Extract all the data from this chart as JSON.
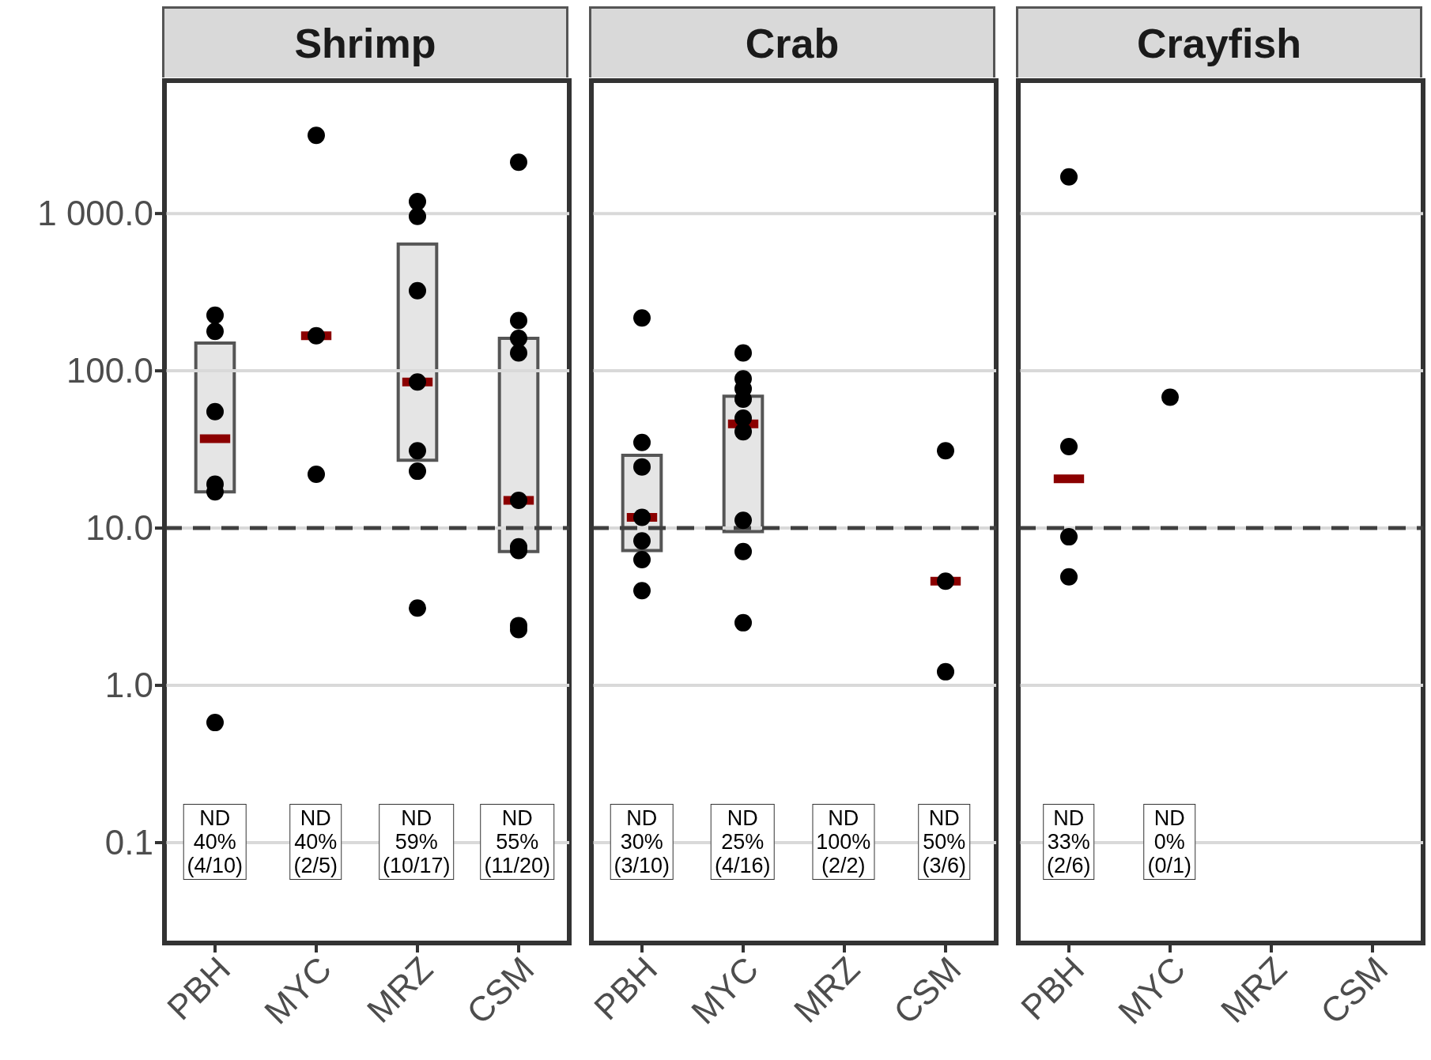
{
  "chart_data": [
    {
      "type": "box",
      "title": "Shrimp",
      "categories": [
        "PBH",
        "MYC",
        "MRZ",
        "CSM"
      ],
      "boxes": [
        {
          "low": 17,
          "q1": 17,
          "median": 37,
          "q3": 150,
          "high": 150
        },
        {
          "low": 167,
          "q1": 167,
          "median": 167,
          "q3": 167,
          "high": 167
        },
        {
          "low": 27,
          "q1": 27,
          "median": 85,
          "q3": 640,
          "high": 640
        },
        {
          "low": 7.1,
          "q1": 7.1,
          "median": 15,
          "q3": 161,
          "high": 161
        }
      ],
      "series": [
        {
          "type": "scatter",
          "color": "#000000",
          "x": [
            "PBH",
            "PBH",
            "PBH",
            "PBH",
            "PBH",
            "PBH",
            "MYC",
            "MYC",
            "MYC",
            "MRZ",
            "MRZ",
            "MRZ",
            "MRZ",
            "MRZ",
            "MRZ",
            "MRZ",
            "CSM",
            "CSM",
            "CSM",
            "CSM",
            "CSM",
            "CSM",
            "CSM",
            "CSM",
            "CSM"
          ],
          "values": [
            226,
            178,
            55,
            19,
            17,
            0.58,
            3140,
            167,
            22,
            1190,
            960,
            323,
            85,
            31,
            23,
            3.1,
            2120,
            209,
            161,
            130,
            15,
            7.6,
            7.2,
            2.4,
            2.26
          ]
        }
      ],
      "annotations": [
        "ND\n40%\n(4/10)",
        "ND\n40%\n(2/5)",
        "ND\n59%\n(10/17)",
        "ND\n55%\n(11/20)"
      ],
      "colors": [
        "#e5e5e5",
        "#8b0000",
        "#e5e5e5",
        "#e5e5e5"
      ],
      "ylim": [
        0.023,
        7000
      ],
      "yticks": [
        0.1,
        {
          "value": 1,
          "label": "1.0"
        },
        {
          "value": 10,
          "label": "10.0"
        },
        {
          "value": 100,
          "label": "100.0"
        },
        {
          "value": 1000,
          "label": "1 000.0"
        }
      ],
      "log": true,
      "grid": "y",
      "marker": "circle",
      "ref_lines": [
        {
          "axis": "y",
          "value": 10,
          "line_style": "dashed",
          "color": "#404040"
        }
      ]
    },
    {
      "type": "box",
      "title": "Crab",
      "categories": [
        "PBH",
        "MYC",
        "MRZ",
        "CSM"
      ],
      "boxes": [
        {
          "low": 7.2,
          "q1": 7.2,
          "median": 11.7,
          "q3": 29,
          "high": 29
        },
        {
          "low": 9.5,
          "q1": 9.5,
          "median": 46,
          "q3": 69,
          "high": 69
        },
        null,
        {
          "low": 4.6,
          "q1": 4.6,
          "median": 4.6,
          "q3": 4.6,
          "high": 4.6
        }
      ],
      "series": [
        {
          "type": "scatter",
          "color": "#000000",
          "x": [
            "PBH",
            "PBH",
            "PBH",
            "PBH",
            "PBH",
            "PBH",
            "PBH",
            "MYC",
            "MYC",
            "MYC",
            "MYC",
            "MYC",
            "MYC",
            "MYC",
            "MYC",
            "MYC",
            "CSM",
            "CSM",
            "CSM"
          ],
          "values": [
            217,
            35,
            24.5,
            11.7,
            8.3,
            6.3,
            4.0,
            130,
            89,
            77,
            66,
            50,
            41,
            11.2,
            7.1,
            2.5,
            31,
            4.6,
            1.22
          ]
        }
      ],
      "annotations": [
        "ND\n30%\n(3/10)",
        "ND\n25%\n(4/16)",
        "ND\n100%\n(2/2)",
        "ND\n50%\n(3/6)"
      ],
      "colors": [
        "#e5e5e5",
        "#e5e5e5",
        null,
        "#8b0000"
      ],
      "ylim": [
        0.023,
        7000
      ],
      "yticks": [
        0.1,
        1,
        10,
        100,
        1000
      ],
      "log": true,
      "grid": "y",
      "marker": "circle",
      "tick_labels": "x",
      "ref_lines": [
        {
          "axis": "y",
          "value": 10,
          "line_style": "dashed",
          "color": "#404040"
        }
      ]
    },
    {
      "type": "box",
      "title": "Crayfish",
      "categories": [
        "PBH",
        "MYC",
        "MRZ",
        "CSM"
      ],
      "boxes": [
        {
          "low": 20.6,
          "q1": 20.6,
          "median": 20.6,
          "q3": 20.6,
          "high": 20.6
        },
        null,
        null,
        null
      ],
      "series": [
        {
          "type": "scatter",
          "color": "#000000",
          "x": [
            "PBH",
            "PBH",
            "PBH",
            "PBH",
            "MYC"
          ],
          "values": [
            1710,
            33,
            8.8,
            4.9,
            68
          ]
        }
      ],
      "annotations": [
        "ND\n33%\n(2/6)",
        "ND\n0%\n(0/1)"
      ],
      "colors": [
        "#8b0000",
        null,
        null,
        null
      ],
      "ylim": [
        0.023,
        7000
      ],
      "yticks": [
        0.1,
        1,
        10,
        100,
        1000
      ],
      "log": true,
      "grid": "y",
      "marker": "circle",
      "tick_labels": "x",
      "ref_lines": [
        {
          "axis": "y",
          "value": 10,
          "line_style": "dashed",
          "color": "#404040"
        }
      ]
    }
  ]
}
